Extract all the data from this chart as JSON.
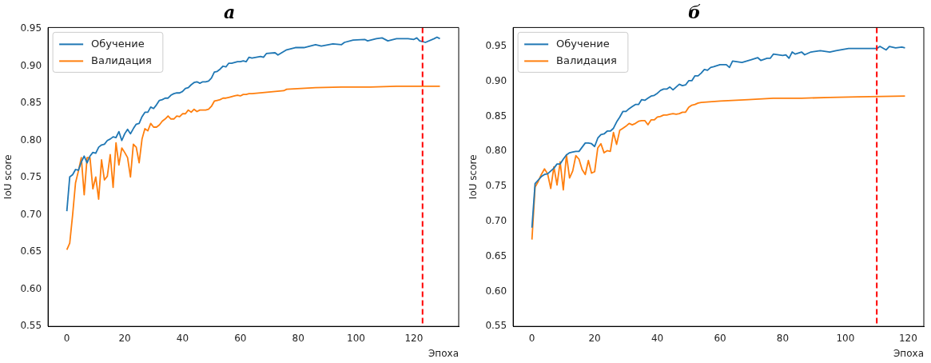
{
  "chart_data": [
    {
      "type": "line",
      "title": "а",
      "xlabel": "Эпоха",
      "ylabel": "IoU score",
      "legend": "top left",
      "grid": false,
      "xlim": [
        -6.5,
        135.5
      ],
      "xticks": [
        0,
        20,
        40,
        60,
        80,
        100,
        120
      ],
      "ylim": [
        0.55,
        0.952
      ],
      "yticks": [
        0.55,
        {
          "value": 0.6,
          "label": "0.60"
        },
        0.65,
        {
          "value": 0.7,
          "label": "0.70"
        },
        0.75,
        {
          "value": 0.8,
          "label": "0.80"
        },
        0.85,
        {
          "value": 0.9,
          "label": "0.90"
        },
        0.95
      ],
      "ref_lines": [
        {
          "axis": "x",
          "value": 123,
          "label": null,
          "color": "#ff0000",
          "line_style": "dashed"
        }
      ],
      "series": [
        {
          "name": "Обучение",
          "color": "#1f77b4",
          "x": [
            0,
            1,
            2,
            3,
            4,
            5,
            6,
            7,
            8,
            9,
            10,
            11,
            12,
            13,
            14,
            15,
            16,
            17,
            18,
            19,
            20,
            21,
            22,
            23,
            24,
            25,
            26,
            27,
            28,
            29,
            30,
            31,
            32,
            33,
            34,
            35,
            36,
            37,
            38,
            39,
            40,
            41,
            42,
            43,
            44,
            45,
            46,
            47,
            48,
            49,
            50,
            51,
            52,
            53,
            54,
            55,
            56,
            57,
            58,
            59,
            60,
            61,
            62,
            63,
            64,
            67,
            68,
            69,
            72,
            73,
            76,
            79,
            82,
            86,
            88,
            92,
            95,
            96,
            99,
            103,
            104,
            107,
            109,
            111,
            114,
            118,
            120,
            121,
            122,
            124,
            127,
            128,
            129
          ],
          "values": [
            0.705,
            0.751,
            0.754,
            0.761,
            0.76,
            0.771,
            0.779,
            0.77,
            0.779,
            0.784,
            0.783,
            0.791,
            0.794,
            0.795,
            0.8,
            0.802,
            0.805,
            0.804,
            0.812,
            0.8,
            0.809,
            0.815,
            0.809,
            0.816,
            0.822,
            0.823,
            0.832,
            0.838,
            0.838,
            0.845,
            0.843,
            0.848,
            0.854,
            0.855,
            0.857,
            0.857,
            0.861,
            0.863,
            0.864,
            0.864,
            0.866,
            0.87,
            0.871,
            0.875,
            0.878,
            0.879,
            0.877,
            0.879,
            0.879,
            0.88,
            0.884,
            0.892,
            0.893,
            0.896,
            0.9,
            0.899,
            0.904,
            0.904,
            0.905,
            0.906,
            0.906,
            0.907,
            0.906,
            0.912,
            0.911,
            0.913,
            0.912,
            0.917,
            0.918,
            0.915,
            0.922,
            0.925,
            0.925,
            0.929,
            0.927,
            0.93,
            0.929,
            0.932,
            0.935,
            0.936,
            0.934,
            0.937,
            0.938,
            0.934,
            0.937,
            0.937,
            0.936,
            0.938,
            0.934,
            0.932,
            0.937,
            0.939,
            0.937
          ]
        },
        {
          "name": "Валидация",
          "color": "#ff7f0e",
          "x": [
            0,
            1,
            2,
            3,
            4,
            5,
            6,
            7,
            8,
            9,
            10,
            11,
            12,
            13,
            14,
            15,
            16,
            17,
            18,
            19,
            20,
            21,
            22,
            23,
            24,
            25,
            26,
            27,
            28,
            29,
            30,
            31,
            32,
            33,
            34,
            35,
            36,
            37,
            38,
            39,
            40,
            41,
            42,
            43,
            44,
            45,
            46,
            47,
            48,
            49,
            50,
            51,
            52,
            53,
            54,
            55,
            56,
            57,
            58,
            59,
            60,
            61,
            62,
            63,
            64,
            75,
            76,
            86,
            95,
            105,
            114,
            129
          ],
          "values": [
            0.653,
            0.662,
            0.7,
            0.743,
            0.759,
            0.777,
            0.727,
            0.777,
            0.777,
            0.735,
            0.751,
            0.721,
            0.774,
            0.747,
            0.752,
            0.781,
            0.737,
            0.797,
            0.767,
            0.79,
            0.784,
            0.777,
            0.751,
            0.795,
            0.791,
            0.77,
            0.802,
            0.816,
            0.813,
            0.823,
            0.818,
            0.818,
            0.821,
            0.826,
            0.829,
            0.833,
            0.829,
            0.829,
            0.833,
            0.832,
            0.836,
            0.836,
            0.841,
            0.838,
            0.842,
            0.839,
            0.841,
            0.841,
            0.841,
            0.842,
            0.846,
            0.853,
            0.854,
            0.855,
            0.857,
            0.857,
            0.858,
            0.859,
            0.86,
            0.861,
            0.86,
            0.862,
            0.862,
            0.863,
            0.863,
            0.867,
            0.869,
            0.871,
            0.872,
            0.872,
            0.873,
            0.873
          ]
        }
      ]
    },
    {
      "type": "line",
      "title": "б",
      "xlabel": "Эпоха",
      "ylabel": "IoU score",
      "legend": "top left",
      "grid": false,
      "xlim": [
        -6,
        125
      ],
      "xticks": [
        0,
        20,
        40,
        60,
        80,
        100,
        120
      ],
      "ylim": [
        0.55,
        0.977
      ],
      "yticks": [
        0.55,
        {
          "value": 0.6,
          "label": "0.60"
        },
        0.65,
        {
          "value": 0.7,
          "label": "0.70"
        },
        0.75,
        {
          "value": 0.8,
          "label": "0.80"
        },
        0.85,
        {
          "value": 0.9,
          "label": "0.90"
        },
        0.95
      ],
      "ref_lines": [
        {
          "axis": "x",
          "value": 110,
          "label": null,
          "color": "#ff0000",
          "line_style": "dashed"
        }
      ],
      "series": [
        {
          "name": "Обучение",
          "color": "#1f77b4",
          "x": [
            0,
            1,
            2,
            3,
            4,
            5,
            6,
            7,
            8,
            9,
            10,
            11,
            12,
            13,
            14,
            15,
            16,
            17,
            18,
            19,
            20,
            21,
            22,
            23,
            24,
            25,
            26,
            27,
            28,
            29,
            30,
            31,
            32,
            33,
            34,
            35,
            36,
            37,
            38,
            39,
            40,
            41,
            42,
            43,
            44,
            45,
            46,
            47,
            48,
            49,
            50,
            51,
            52,
            53,
            54,
            55,
            56,
            57,
            58,
            60,
            62,
            63,
            64,
            67,
            70,
            72,
            73,
            75,
            76,
            77,
            80,
            81,
            82,
            83,
            84,
            86,
            87,
            89,
            92,
            95,
            97,
            101,
            105,
            110,
            111,
            113,
            114,
            116,
            118,
            119
          ],
          "values": [
            0.691,
            0.754,
            0.759,
            0.764,
            0.767,
            0.768,
            0.772,
            0.776,
            0.782,
            0.782,
            0.789,
            0.795,
            0.798,
            0.799,
            0.8,
            0.8,
            0.806,
            0.812,
            0.812,
            0.811,
            0.807,
            0.819,
            0.824,
            0.825,
            0.829,
            0.829,
            0.833,
            0.842,
            0.849,
            0.857,
            0.857,
            0.861,
            0.864,
            0.867,
            0.867,
            0.874,
            0.873,
            0.876,
            0.879,
            0.88,
            0.883,
            0.887,
            0.889,
            0.889,
            0.892,
            0.888,
            0.892,
            0.896,
            0.894,
            0.895,
            0.901,
            0.901,
            0.908,
            0.908,
            0.912,
            0.917,
            0.916,
            0.92,
            0.921,
            0.924,
            0.924,
            0.92,
            0.929,
            0.927,
            0.931,
            0.934,
            0.93,
            0.933,
            0.933,
            0.939,
            0.937,
            0.938,
            0.933,
            0.942,
            0.939,
            0.942,
            0.938,
            0.942,
            0.944,
            0.942,
            0.944,
            0.947,
            0.947,
            0.947,
            0.95,
            0.945,
            0.95,
            0.948,
            0.949,
            0.948
          ]
        },
        {
          "name": "Валидация",
          "color": "#ff7f0e",
          "x": [
            0,
            1,
            2,
            3,
            4,
            5,
            6,
            7,
            8,
            9,
            10,
            11,
            12,
            13,
            14,
            15,
            16,
            17,
            18,
            19,
            20,
            21,
            22,
            23,
            24,
            25,
            26,
            27,
            28,
            29,
            30,
            31,
            32,
            33,
            34,
            35,
            36,
            37,
            38,
            39,
            40,
            41,
            42,
            43,
            44,
            45,
            46,
            47,
            48,
            49,
            50,
            51,
            52,
            53,
            54,
            60,
            69,
            77,
            86,
            95,
            104,
            119
          ],
          "values": [
            0.674,
            0.749,
            0.757,
            0.767,
            0.775,
            0.768,
            0.747,
            0.778,
            0.752,
            0.785,
            0.745,
            0.795,
            0.762,
            0.772,
            0.794,
            0.789,
            0.774,
            0.767,
            0.787,
            0.769,
            0.771,
            0.805,
            0.811,
            0.798,
            0.801,
            0.8,
            0.827,
            0.81,
            0.83,
            0.833,
            0.836,
            0.84,
            0.838,
            0.84,
            0.843,
            0.844,
            0.844,
            0.838,
            0.845,
            0.845,
            0.849,
            0.85,
            0.852,
            0.852,
            0.853,
            0.854,
            0.853,
            0.854,
            0.856,
            0.856,
            0.863,
            0.866,
            0.867,
            0.869,
            0.87,
            0.872,
            0.874,
            0.876,
            0.876,
            0.877,
            0.878,
            0.879
          ]
        }
      ]
    }
  ]
}
